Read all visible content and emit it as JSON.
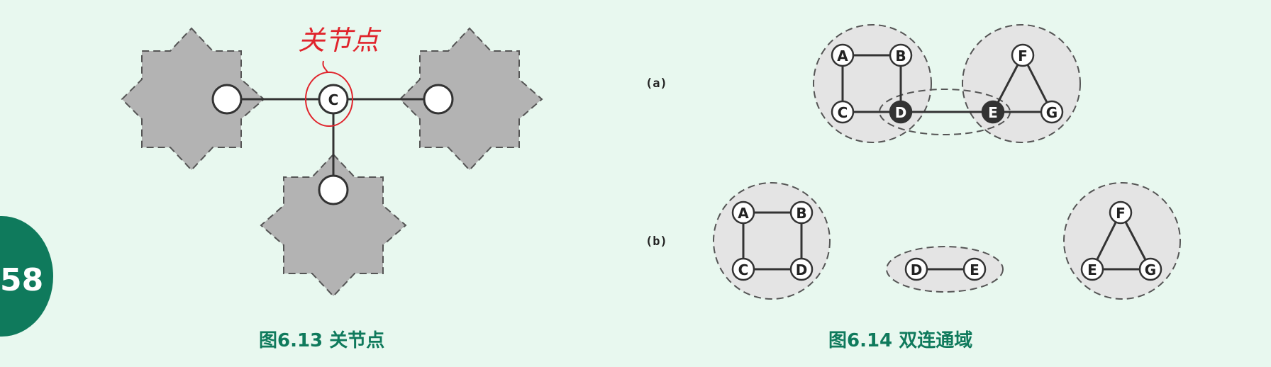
{
  "page_number": "58",
  "figure_left": {
    "caption": "图6.13  关节点",
    "articulation_node": "C",
    "annotation": "关节点"
  },
  "figure_right": {
    "caption": "图6.14  双连通域",
    "panel_a_label": "(a)",
    "panel_b_label": "(b)",
    "panel_a_nodes": [
      "A",
      "B",
      "C",
      "D",
      "E",
      "F",
      "G"
    ],
    "panel_b_components": [
      {
        "nodes": [
          "A",
          "B",
          "C",
          "D"
        ]
      },
      {
        "nodes": [
          "D",
          "E"
        ]
      },
      {
        "nodes": [
          "F",
          "E",
          "G"
        ]
      }
    ]
  },
  "colors": {
    "background": "#e8f8ef",
    "accent": "#0f7a5c",
    "annotation": "#e0242c",
    "region_fill": "#b3b3b3",
    "component_fill": "#e4e4e4"
  }
}
